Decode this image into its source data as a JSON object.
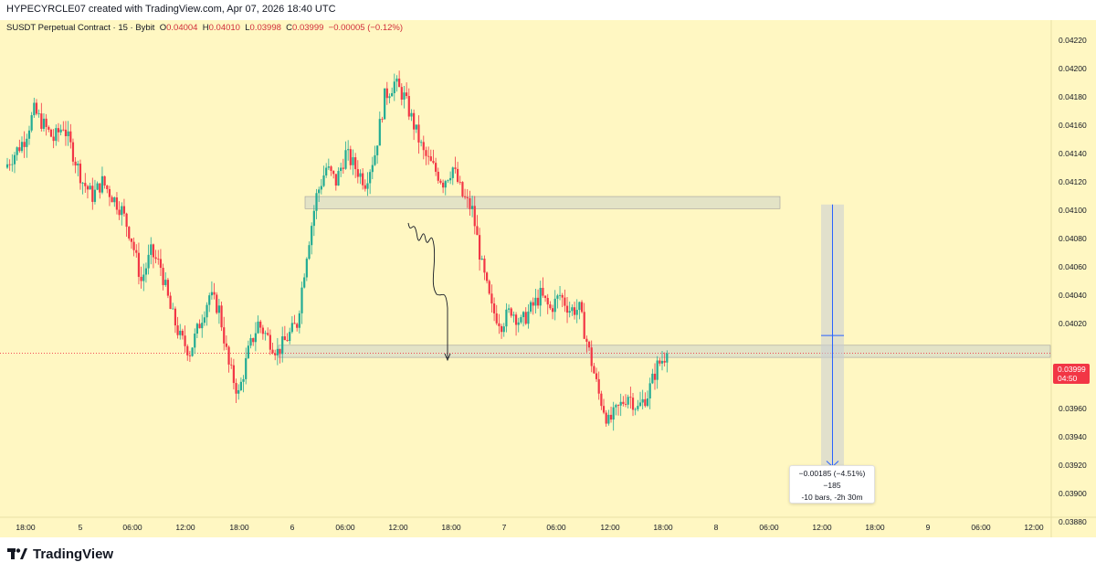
{
  "header": {
    "text": "HYPECYRCLE07 created with TradingView.com, Apr 07, 2026 18:40 UTC"
  },
  "legend": {
    "symbol": "SUSDT Perpetual Contract · 15 · Bybit",
    "open_label": "O",
    "open": "0.04004",
    "high_label": "H",
    "high": "0.04010",
    "low_label": "L",
    "low": "0.03998",
    "close_label": "C",
    "close": "0.03999",
    "change": "−0.00005 (−0.12%)"
  },
  "price_badge": {
    "price": "0.03999",
    "countdown": "04:50"
  },
  "measure_tooltip": {
    "line1": "−0.00185 (−4.51%) −185",
    "line2": "-10 bars, -2h 30m"
  },
  "brand": {
    "name": "TradingView"
  },
  "colors": {
    "background": "#fff7c2",
    "up": "#22ab94",
    "down": "#f23645",
    "zone_fill": "#d9dcc7",
    "measure": "#2962ff",
    "price_line": "#f23645"
  },
  "chart_data": {
    "type": "candlestick",
    "title": "SUSDT Perpetual Contract · 15 · Bybit",
    "xlabel": "",
    "ylabel": "",
    "ylim": [
      0.0388,
      0.0423
    ],
    "y_ticks": [
      "0.04220",
      "0.04200",
      "0.04180",
      "0.04160",
      "0.04140",
      "0.04120",
      "0.04100",
      "0.04080",
      "0.04060",
      "0.04040",
      "0.04020",
      "0.03980",
      "0.03960",
      "0.03940",
      "0.03920",
      "0.03900",
      "0.03880"
    ],
    "x_ticks": [
      "18:00",
      "5",
      "06:00",
      "12:00",
      "18:00",
      "6",
      "06:00",
      "12:00",
      "18:00",
      "7",
      "06:00",
      "12:00",
      "18:00",
      "8",
      "06:00",
      "12:00",
      "18:00",
      "9",
      "06:00",
      "12:00"
    ],
    "last_price": 0.03999,
    "zones": [
      {
        "from_x_label": "6",
        "to_x_label": "06:00 (Apr 8)",
        "top": 0.04109,
        "bottom": 0.04103
      },
      {
        "from_x_label": "6",
        "to_x_label": "right edge",
        "top": 0.04004,
        "bottom": 0.03998
      }
    ],
    "measure": {
      "from_price": 0.04104,
      "to_price": 0.03919,
      "change": -0.00185,
      "percent": -4.51,
      "ticks": -185,
      "bars": -10,
      "duration": "-2h 30m"
    },
    "series": [
      {
        "values_close": [
          0.0413,
          0.0414,
          0.0415,
          0.0417,
          0.0416,
          0.0415,
          0.0416,
          0.0414,
          0.0412,
          0.0411,
          0.0412,
          0.0411,
          0.041,
          0.0408,
          0.0405,
          0.0407,
          0.0406,
          0.0403,
          0.0401,
          0.04,
          0.0402,
          0.0404,
          0.0403,
          0.0399,
          0.0397,
          0.04,
          0.0402,
          0.0401,
          0.04,
          0.0401,
          0.0402,
          0.0407,
          0.0411,
          0.0413,
          0.0412,
          0.0414,
          0.0413,
          0.0412,
          0.0414,
          0.0418,
          0.0419,
          0.0418,
          0.0416,
          0.0414,
          0.0413,
          0.0412,
          0.0413,
          0.0411,
          0.041,
          0.0406,
          0.0403,
          0.0402,
          0.0403,
          0.0402,
          0.0403,
          0.0404,
          0.0403,
          0.0404,
          0.0403,
          0.0403,
          0.04,
          0.0397,
          0.0395,
          0.0396,
          0.0397,
          0.0396,
          0.0397,
          0.0399,
          0.03999
        ]
      }
    ]
  }
}
